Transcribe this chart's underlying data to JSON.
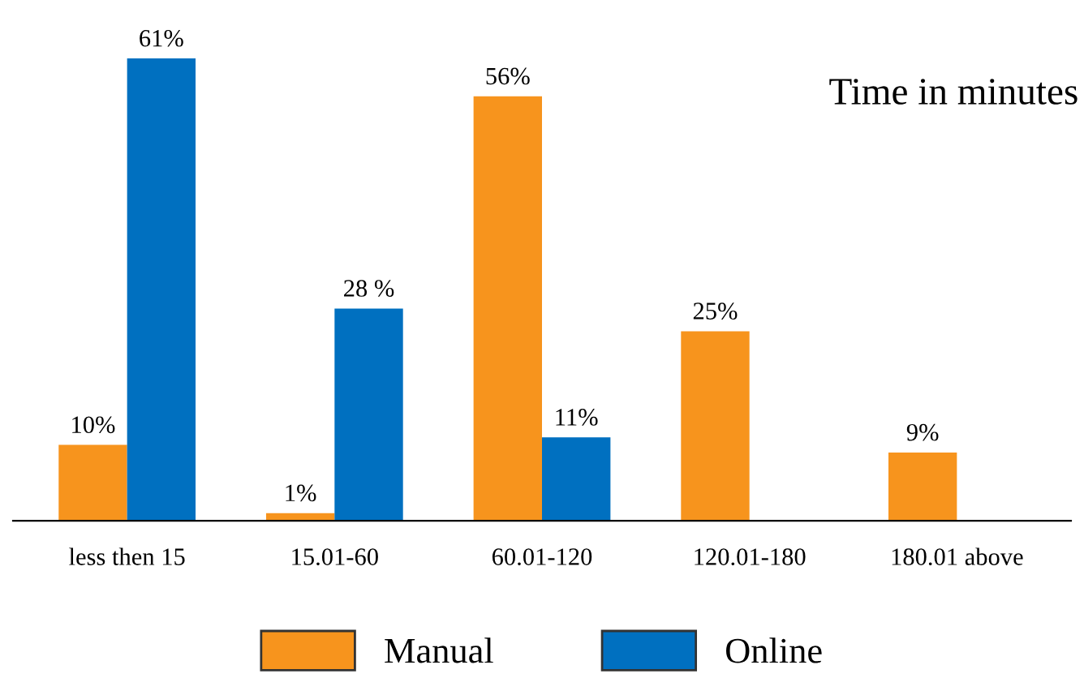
{
  "chart_data": {
    "type": "bar",
    "title": "Time in minutes",
    "categories": [
      "less then 15",
      "15.01-60",
      "60.01-120",
      "120.01-180",
      "180.01 above"
    ],
    "series": [
      {
        "name": "Manual",
        "color": "#f7941d",
        "values": [
          10,
          1,
          56,
          25,
          9
        ],
        "value_labels": [
          "10%",
          "1%",
          "56%",
          "25%",
          "9%"
        ]
      },
      {
        "name": "Online",
        "color": "#0070c0",
        "values": [
          61,
          28,
          11,
          null,
          null
        ],
        "value_labels": [
          "61%",
          "28 %",
          "11%",
          null,
          null
        ]
      }
    ],
    "tick_labels": "x",
    "grid": false,
    "legend": "bottom"
  }
}
